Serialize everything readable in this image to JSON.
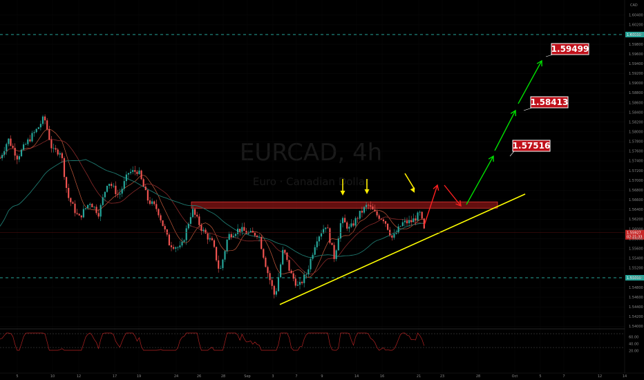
{
  "chart_data": {
    "type": "candlestick",
    "title": "EURCAD, 4h",
    "subtitle": "Euro · Canadian Dollar",
    "currency": "CAD",
    "price_axis": {
      "ylim": [
        1.534,
        1.6045
      ],
      "ticks": [
        "1.60400",
        "1.60200",
        "1.60000",
        "1.59800",
        "1.59600",
        "1.59400",
        "1.59200",
        "1.59000",
        "1.58800",
        "1.58600",
        "1.58400",
        "1.58200",
        "1.58000",
        "1.57800",
        "1.57600",
        "1.57400",
        "1.57200",
        "1.57000",
        "1.56800",
        "1.56600",
        "1.56400",
        "1.56200",
        "1.56000",
        "1.55800",
        "1.55600",
        "1.55400",
        "1.55200",
        "1.55000",
        "1.54800",
        "1.54600",
        "1.54400",
        "1.54200",
        "1.54000"
      ]
    },
    "x_axis": {
      "tick_labels": [
        "5",
        "10",
        "12",
        "17",
        "19",
        "24",
        "26",
        "28",
        "Sep",
        "3",
        "7",
        "9",
        "14",
        "16",
        "21",
        "23",
        "28",
        "Oct",
        "5",
        "7",
        "12",
        "14"
      ]
    },
    "horizontal_levels": [
      {
        "value": 1.6,
        "label": "1.60000",
        "color": "#26a69a"
      },
      {
        "value": 1.55,
        "label": "1.55000",
        "color": "#26a69a"
      }
    ],
    "last_price": {
      "value": "1.55927",
      "countdown": "02:21:33"
    },
    "resistance_zone": {
      "from": 1.5643,
      "to": 1.5656
    },
    "support_trendline": {
      "from": {
        "date": "Sep 3",
        "price": 1.5445
      },
      "to": {
        "date": "Sep 28",
        "price": 1.5672
      }
    },
    "signal_arrows_count": 3,
    "targets": [
      {
        "label": "1.57516",
        "value": 1.57516
      },
      {
        "label": "1.58413",
        "value": 1.58413
      },
      {
        "label": "1.59499",
        "value": 1.59499
      }
    ],
    "rsi": {
      "ticks": [
        "60.00",
        "40.00",
        "20.00"
      ],
      "levels": [
        70,
        30
      ]
    },
    "colors": {
      "up": "#26a69a",
      "down": "#ef5350",
      "trendline": "#ffff00",
      "zone": "#b71c1c",
      "target_box": "#c0101a",
      "path_up": "#00e000",
      "path_down": "#ff2020"
    }
  }
}
